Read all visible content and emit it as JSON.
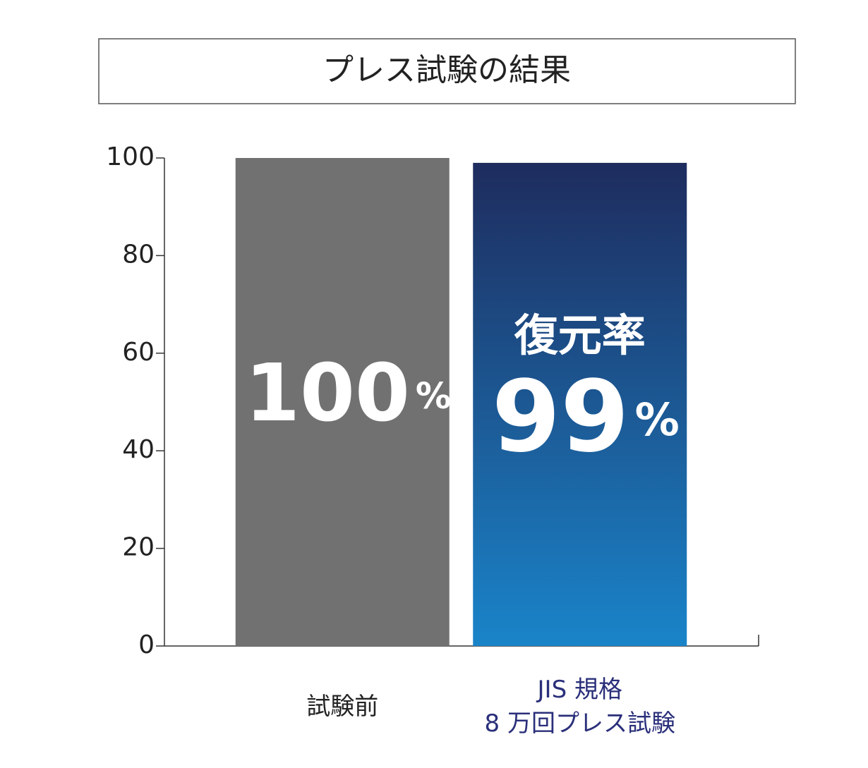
{
  "chart_data": {
    "type": "bar",
    "title": "プレス試験の結果",
    "categories": [
      "試験前",
      "JIS 規格\n8 万回プレス試験"
    ],
    "values": [
      100,
      99
    ],
    "value_labels": [
      "100%",
      "99%"
    ],
    "annotation": "復元率",
    "colors": [
      "#717171",
      [
        "#1e2c5e",
        "#1a84c9"
      ]
    ],
    "category_label_colors": [
      "#222222",
      "#2a2f7a"
    ],
    "ylim": [
      0,
      100
    ],
    "yticks": [
      0,
      20,
      40,
      60,
      80,
      100
    ],
    "grid": false
  }
}
